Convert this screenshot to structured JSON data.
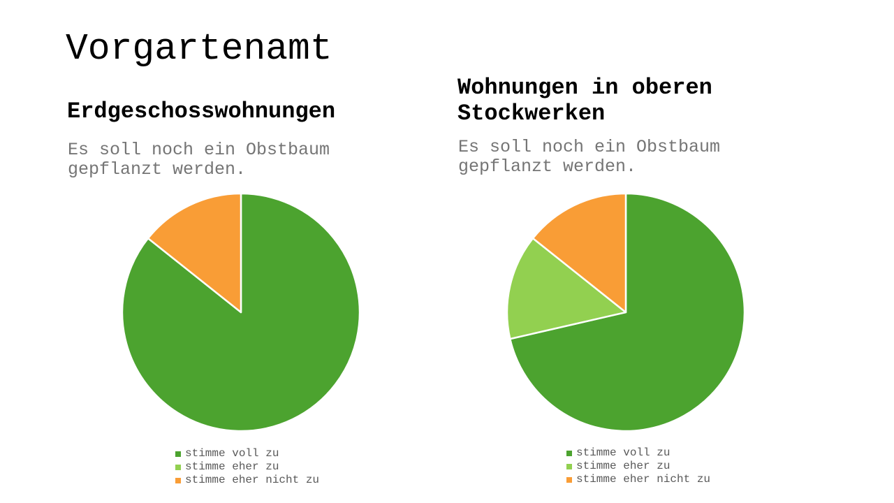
{
  "page": {
    "title": "Vorgartenamt",
    "background_color": "#ffffff",
    "heading_color": "#000000",
    "subtitle_color": "#757575",
    "legend_text_color": "#595959"
  },
  "chart_data": [
    {
      "type": "pie",
      "title": "Erdgeschosswohnungen",
      "subtitle": "Es soll noch ein Obstbaum gepflanzt werden.",
      "start_angle_deg": 0,
      "direction": "clockwise",
      "legend_position": "bottom",
      "slices": [
        {
          "label": "stimme voll zu",
          "share_percent": 85.7,
          "color": "#4CA32F"
        },
        {
          "label": "stimme eher zu",
          "share_percent": 0,
          "color": "#92D050"
        },
        {
          "label": "stimme eher nicht zu",
          "share_percent": 14.3,
          "color": "#F99D36"
        }
      ]
    },
    {
      "type": "pie",
      "title": "Wohnungen in oberen Stockwerken",
      "subtitle": "Es soll noch ein Obstbaum gepflanzt werden.",
      "start_angle_deg": 0,
      "direction": "clockwise",
      "legend_position": "bottom",
      "slices": [
        {
          "label": "stimme voll zu",
          "share_percent": 71.4,
          "color": "#4CA32F"
        },
        {
          "label": "stimme eher zu",
          "share_percent": 14.3,
          "color": "#92D050"
        },
        {
          "label": "stimme eher nicht zu",
          "share_percent": 14.3,
          "color": "#F99D36"
        }
      ]
    }
  ]
}
